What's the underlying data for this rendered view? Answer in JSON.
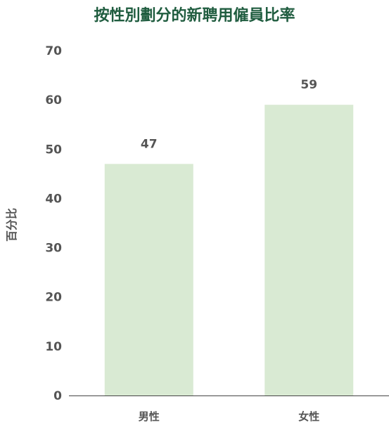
{
  "chart_data": {
    "type": "bar",
    "title": "按性別劃分的新聘用僱員比率",
    "xlabel": "",
    "ylabel": "百分比",
    "categories": [
      "男性",
      "女性"
    ],
    "values": [
      47,
      59
    ],
    "ylim": [
      0,
      70
    ],
    "yticks": [
      0,
      10,
      20,
      30,
      40,
      50,
      60,
      70
    ],
    "grid": false,
    "legend": "none",
    "bar_color": "#d9ead3",
    "title_color": "#1f5c3f",
    "text_color": "#555555",
    "axis_color": "#444444"
  }
}
